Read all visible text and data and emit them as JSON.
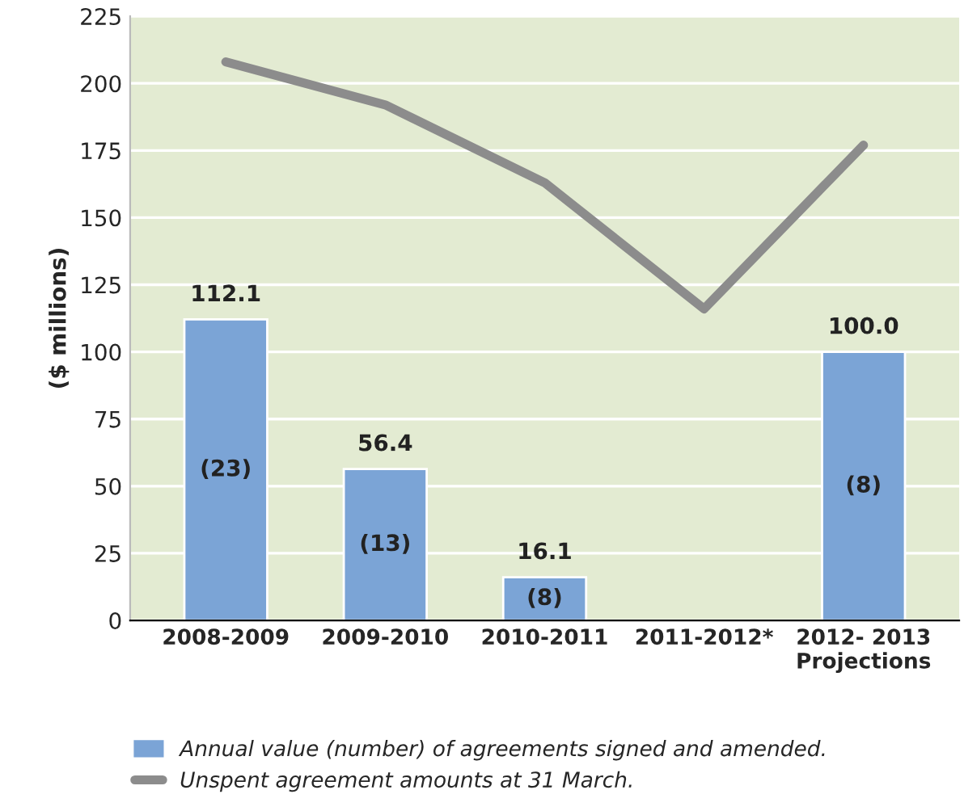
{
  "chart_data": {
    "type": "bar",
    "ylabel": "($ millions)",
    "categories": [
      "2008-2009",
      "2009-2010",
      "2010-2011",
      "2011-2012*",
      "2012- 2013\nProjections"
    ],
    "series": [
      {
        "name": "Annual value (number) of agreements signed and amended.",
        "color": "#7ba4d6",
        "values": [
          112.1,
          56.4,
          16.1,
          null,
          100.0
        ],
        "value_labels": [
          "112.1",
          "56.4",
          "16.1",
          null,
          "100.0"
        ]
      },
      {
        "name": "Unspent agreement amounts at 31 March.",
        "type": "line",
        "color": "#8c8c8c",
        "values": [
          208,
          192,
          163,
          116,
          177
        ]
      }
    ],
    "annotations": [
      "(23)",
      "(13)",
      "(8)",
      "(8)"
    ],
    "ylim": [
      0,
      225
    ],
    "yticks": [
      0,
      25,
      50,
      75,
      100,
      125,
      150,
      175,
      200,
      225
    ],
    "grid": "y",
    "legend": "bottom",
    "marker": "none",
    "line_style": "solid"
  }
}
